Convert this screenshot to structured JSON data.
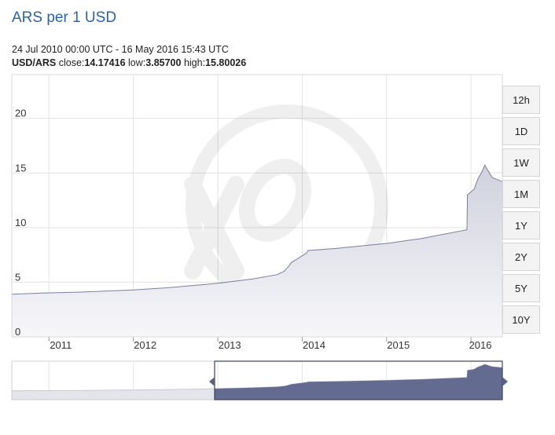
{
  "header": {
    "title": "ARS per 1 USD",
    "date_range": "24 Jul 2010 00:00 UTC - 16 May 2016 15:43 UTC",
    "pair": "USD/ARS",
    "close_label": "close:",
    "close_value": "14.17416",
    "low_label": "low:",
    "low_value": "3.85700",
    "high_label": "high:",
    "high_value": "15.80026"
  },
  "timeframes": [
    "12h",
    "1D",
    "1W",
    "1M",
    "1Y",
    "2Y",
    "5Y",
    "10Y"
  ],
  "colors": {
    "line": "#7a7f9e",
    "fill_top": "#cfd1dd",
    "fill_bottom": "#f7f7fa",
    "grid": "#e3e3e3",
    "navigator": "#646b91"
  },
  "chart_data": {
    "type": "area",
    "x_axis": "date",
    "xlim": [
      "2010-07-24",
      "2016-05-16"
    ],
    "ylim": [
      0,
      24
    ],
    "yticks": [
      0,
      5,
      10,
      15,
      20
    ],
    "xticks": [
      "2011",
      "2012",
      "2013",
      "2014",
      "2015",
      "2016"
    ],
    "grid": true,
    "series": [
      {
        "x": [
          "2010-07-24",
          "2010-12-01",
          "2011-06-01",
          "2012-01-01",
          "2012-06-01",
          "2013-01-01",
          "2013-06-01",
          "2013-09-15",
          "2013-10-15",
          "2013-11-01",
          "2013-11-15",
          "2014-01-22",
          "2014-01-25",
          "2014-06-01",
          "2015-01-01",
          "2015-06-01",
          "2015-12-15",
          "2015-12-17",
          "2016-01-15",
          "2016-02-01",
          "2016-02-15",
          "2016-03-01",
          "2016-04-01",
          "2016-05-16"
        ],
        "y": [
          3.9,
          4.0,
          4.1,
          4.3,
          4.5,
          4.9,
          5.3,
          5.7,
          6.0,
          6.4,
          6.8,
          7.7,
          7.9,
          8.1,
          8.55,
          9.0,
          9.8,
          13.0,
          13.5,
          14.5,
          15.0,
          15.7,
          14.6,
          14.2
        ]
      }
    ]
  }
}
